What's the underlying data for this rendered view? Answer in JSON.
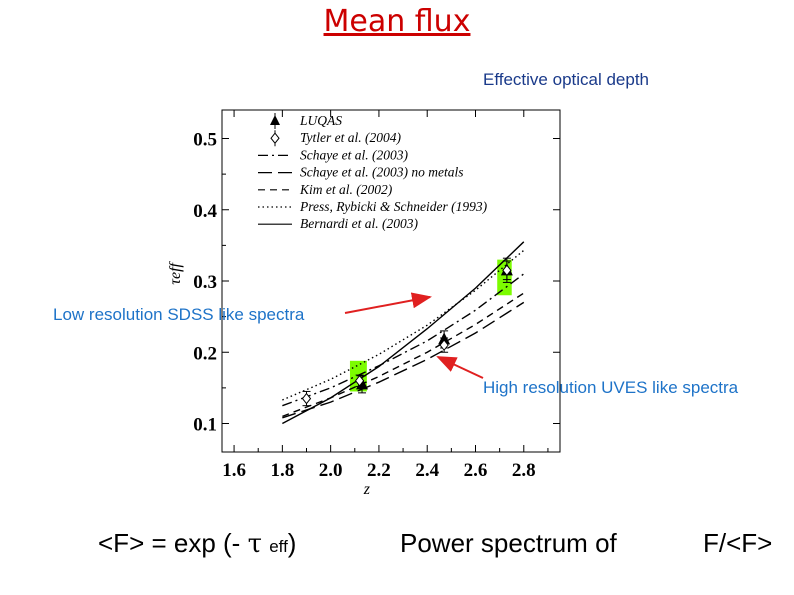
{
  "slide": {
    "title": "Mean flux",
    "subtitle": "Effective optical depth",
    "callout_low": "Low resolution SDSS like spectra",
    "callout_high": "High resolution UVES like spectra",
    "formula_prefix": "<F> = exp (- ",
    "formula_tau": "τ",
    "formula_sub": "eff",
    "formula_suffix": ")",
    "power_spectrum": "Power spectrum of",
    "flux_ratio": "F/<F>",
    "colors": {
      "title": "#cc0000",
      "callout": "#1e73c8",
      "arrow": "#e02020",
      "highlight": "#7cfc00"
    }
  },
  "chart_data": {
    "type": "line",
    "xlabel": "z",
    "ylabel": "τeff",
    "xlim": [
      1.55,
      2.95
    ],
    "ylim": [
      0.06,
      0.54
    ],
    "xticks": [
      "1.6",
      "1.8",
      "2.0",
      "2.2",
      "2.4",
      "2.6",
      "2.8"
    ],
    "yticks": [
      "0.1",
      "0.2",
      "0.3",
      "0.4",
      "0.5"
    ],
    "legend_position": "top-left",
    "series": [
      {
        "name": "LUQAS",
        "kind": "markers",
        "marker": "triangle",
        "x": [
          2.13,
          2.47,
          2.73
        ],
        "y": [
          0.155,
          0.218,
          0.315
        ],
        "yerr": [
          0.012,
          0.012,
          0.017
        ]
      },
      {
        "name": "Tytler et al. (2004)",
        "kind": "markers",
        "marker": "diamond",
        "x": [
          1.9,
          2.12,
          2.47,
          2.73
        ],
        "y": [
          0.135,
          0.16,
          0.21,
          0.315
        ],
        "yerr": [
          0.01,
          0.008,
          0.01,
          0.013
        ]
      },
      {
        "name": "Schaye et al. (2003)",
        "kind": "line",
        "dash": "dashdot",
        "x": [
          1.8,
          2.0,
          2.2,
          2.4,
          2.6,
          2.8
        ],
        "y": [
          0.125,
          0.15,
          0.181,
          0.216,
          0.259,
          0.31
        ]
      },
      {
        "name": "Schaye et al. (2003) no metals",
        "kind": "line",
        "dash": "longdash",
        "x": [
          1.8,
          2.0,
          2.2,
          2.4,
          2.6,
          2.8
        ],
        "y": [
          0.108,
          0.13,
          0.158,
          0.19,
          0.227,
          0.27
        ]
      },
      {
        "name": "Kim et al. (2002)",
        "kind": "line",
        "dash": "dashed",
        "x": [
          1.8,
          2.0,
          2.2,
          2.4,
          2.6,
          2.8
        ],
        "y": [
          0.11,
          0.136,
          0.166,
          0.2,
          0.239,
          0.283
        ]
      },
      {
        "name": "Press, Rybicki & Schneider (1993)",
        "kind": "line",
        "dash": "dotted",
        "x": [
          1.8,
          2.0,
          2.2,
          2.4,
          2.6,
          2.8
        ],
        "y": [
          0.133,
          0.162,
          0.197,
          0.238,
          0.287,
          0.343
        ]
      },
      {
        "name": "Bernardi et al. (2003)",
        "kind": "line",
        "dash": "solid",
        "x": [
          1.8,
          2.0,
          2.2,
          2.4,
          2.6,
          2.8
        ],
        "y": [
          0.1,
          0.136,
          0.18,
          0.233,
          0.29,
          0.355
        ]
      }
    ],
    "highlights": [
      {
        "x": [
          2.08,
          2.15
        ],
        "y": [
          0.145,
          0.188
        ]
      },
      {
        "x": [
          2.69,
          2.75
        ],
        "y": [
          0.28,
          0.33
        ]
      }
    ]
  }
}
